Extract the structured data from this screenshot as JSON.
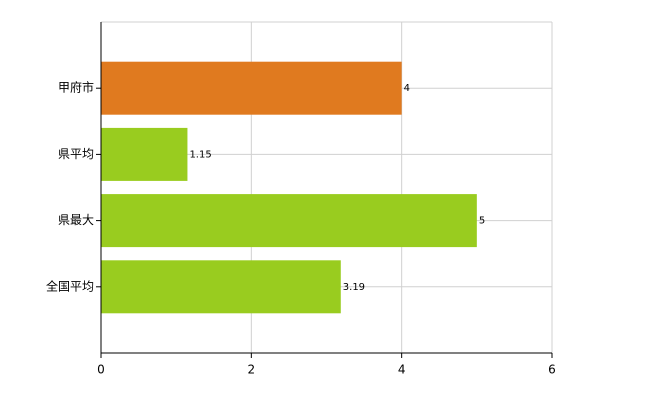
{
  "chart_data": {
    "type": "barh",
    "categories": [
      "甲府市",
      "県平均",
      "県最大",
      "全国平均"
    ],
    "values": [
      4,
      1.15,
      5,
      3.19
    ],
    "colors": [
      "#e07a1f",
      "#99cc1f",
      "#99cc1f",
      "#99cc1f"
    ],
    "xlim": [
      0,
      6
    ],
    "xticks": [
      0,
      2,
      4,
      6
    ],
    "grid": true
  }
}
